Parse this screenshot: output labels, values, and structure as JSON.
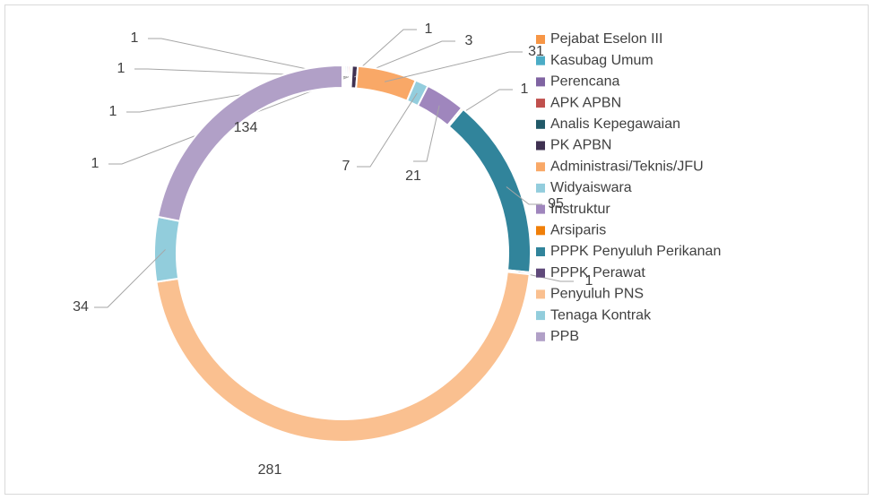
{
  "chart_data": {
    "type": "donut",
    "categories": [
      "Pejabat Eselon III",
      "Kasubag Umum",
      "Perencana",
      "APK APBN",
      "Analis Kepegawaian",
      "PK APBN",
      "Administrasi/Teknis/JFU",
      "Widyaiswara",
      "Instruktur",
      "Arsiparis",
      "PPPK Penyuluh Perikanan",
      "PPPK Perawat",
      "Penyuluh PNS",
      "Tenaga Kontrak",
      "PPB"
    ],
    "values": [
      1,
      1,
      1,
      1,
      1,
      3,
      31,
      7,
      21,
      1,
      95,
      1,
      281,
      34,
      134
    ],
    "colors": [
      "#f79646",
      "#4bacc6",
      "#8064a2",
      "#c0504d",
      "#215968",
      "#3f3151",
      "#f9a867",
      "#93cddd",
      "#9f86bd",
      "#f07f09",
      "#31849b",
      "#5f497a",
      "#fac090",
      "#92cddc",
      "#b1a0c7"
    ],
    "legend": "right"
  }
}
